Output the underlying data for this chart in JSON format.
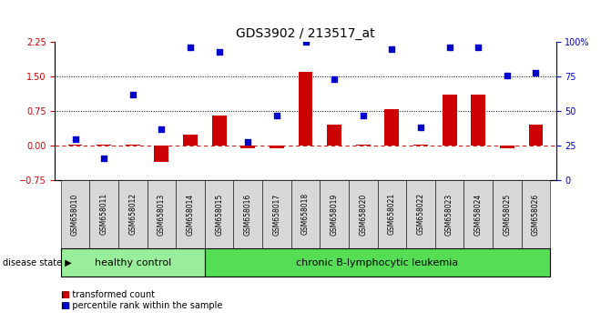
{
  "title": "GDS3902 / 213517_at",
  "samples": [
    "GSM658010",
    "GSM658011",
    "GSM658012",
    "GSM658013",
    "GSM658014",
    "GSM658015",
    "GSM658016",
    "GSM658017",
    "GSM658018",
    "GSM658019",
    "GSM658020",
    "GSM658021",
    "GSM658022",
    "GSM658023",
    "GSM658024",
    "GSM658025",
    "GSM658026"
  ],
  "bar_values": [
    0.02,
    0.02,
    0.02,
    -0.35,
    0.25,
    0.65,
    -0.05,
    -0.05,
    1.6,
    0.45,
    0.02,
    0.8,
    0.02,
    1.1,
    1.1,
    -0.05,
    0.45
  ],
  "dot_values_pct": [
    30,
    16,
    62,
    37,
    96,
    93,
    28,
    47,
    100,
    73,
    47,
    95,
    38,
    96,
    96,
    76,
    78
  ],
  "bar_color": "#cc0000",
  "dot_color": "#0000cc",
  "dashed_color": "#cc0000",
  "dotted_line_values": [
    1.5,
    0.75
  ],
  "ylim_left": [
    -0.75,
    2.25
  ],
  "ylim_right": [
    0,
    100
  ],
  "right_ticks": [
    0,
    25,
    50,
    75,
    100
  ],
  "right_tick_labels": [
    "0",
    "25",
    "50",
    "75",
    "100%"
  ],
  "left_ticks": [
    -0.75,
    0.0,
    0.75,
    1.5,
    2.25
  ],
  "healthy_count": 5,
  "healthy_label": "healthy control",
  "leukemia_label": "chronic B-lymphocytic leukemia",
  "healthy_color": "#99ee99",
  "leukemia_color": "#55dd55",
  "disease_state_label": "disease state",
  "legend_bar_label": "transformed count",
  "legend_dot_label": "percentile rank within the sample",
  "title_fontsize": 10,
  "axis_fontsize": 7,
  "label_fontsize": 8,
  "tick_box_color": "#d8d8d8",
  "background_color": "#ffffff",
  "plot_bg_color": "#ffffff"
}
